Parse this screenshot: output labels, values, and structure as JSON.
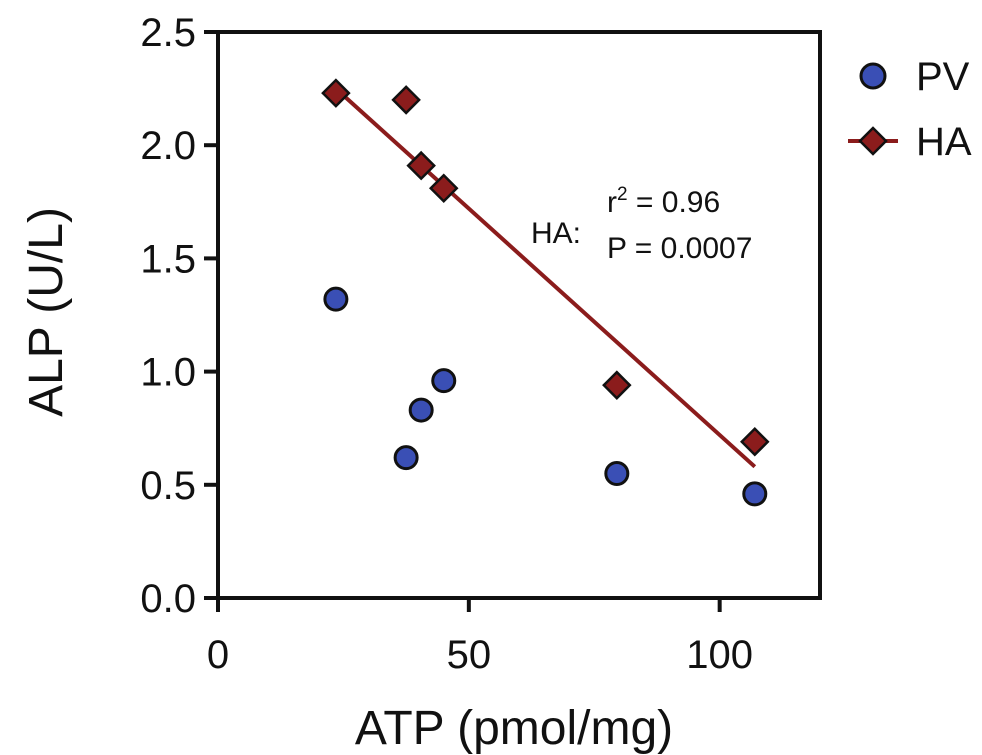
{
  "chart_data": {
    "type": "scatter",
    "xlabel": "ATP (pmol/mg)",
    "ylabel": "ALP (U/L)",
    "xlim": [
      0,
      120
    ],
    "ylim": [
      0,
      2.5
    ],
    "x_ticks": [
      0,
      50,
      100
    ],
    "y_ticks": [
      0.0,
      0.5,
      1.0,
      1.5,
      2.0,
      2.5
    ],
    "x_tick_labels": [
      "0",
      "50",
      "100"
    ],
    "y_tick_labels": [
      "0.0",
      "0.5",
      "1.0",
      "1.5",
      "2.0",
      "2.5"
    ],
    "grid": false,
    "legend_position": "top-right",
    "series": [
      {
        "name": "PV",
        "marker": "circle",
        "color": "#3a4fb5",
        "points": [
          {
            "x": 23.5,
            "y": 1.32
          },
          {
            "x": 37.5,
            "y": 0.62
          },
          {
            "x": 40.5,
            "y": 0.83
          },
          {
            "x": 45.0,
            "y": 0.96
          },
          {
            "x": 79.5,
            "y": 0.55
          },
          {
            "x": 107.0,
            "y": 0.46
          }
        ]
      },
      {
        "name": "HA",
        "marker": "diamond",
        "color": "#8b1c1c",
        "points": [
          {
            "x": 23.5,
            "y": 2.23
          },
          {
            "x": 37.5,
            "y": 2.2
          },
          {
            "x": 40.5,
            "y": 1.91
          },
          {
            "x": 45.0,
            "y": 1.81
          },
          {
            "x": 79.5,
            "y": 0.94
          },
          {
            "x": 107.0,
            "y": 0.69
          }
        ],
        "regression_line": {
          "x": [
            23.5,
            107.0
          ],
          "y": [
            2.25,
            0.58
          ]
        }
      }
    ],
    "annotation": {
      "prefix": "HA:",
      "r2_base": "r",
      "r2_sup": "2",
      "r2_value": " = 0.96",
      "p_text": "P = 0.0007"
    }
  }
}
